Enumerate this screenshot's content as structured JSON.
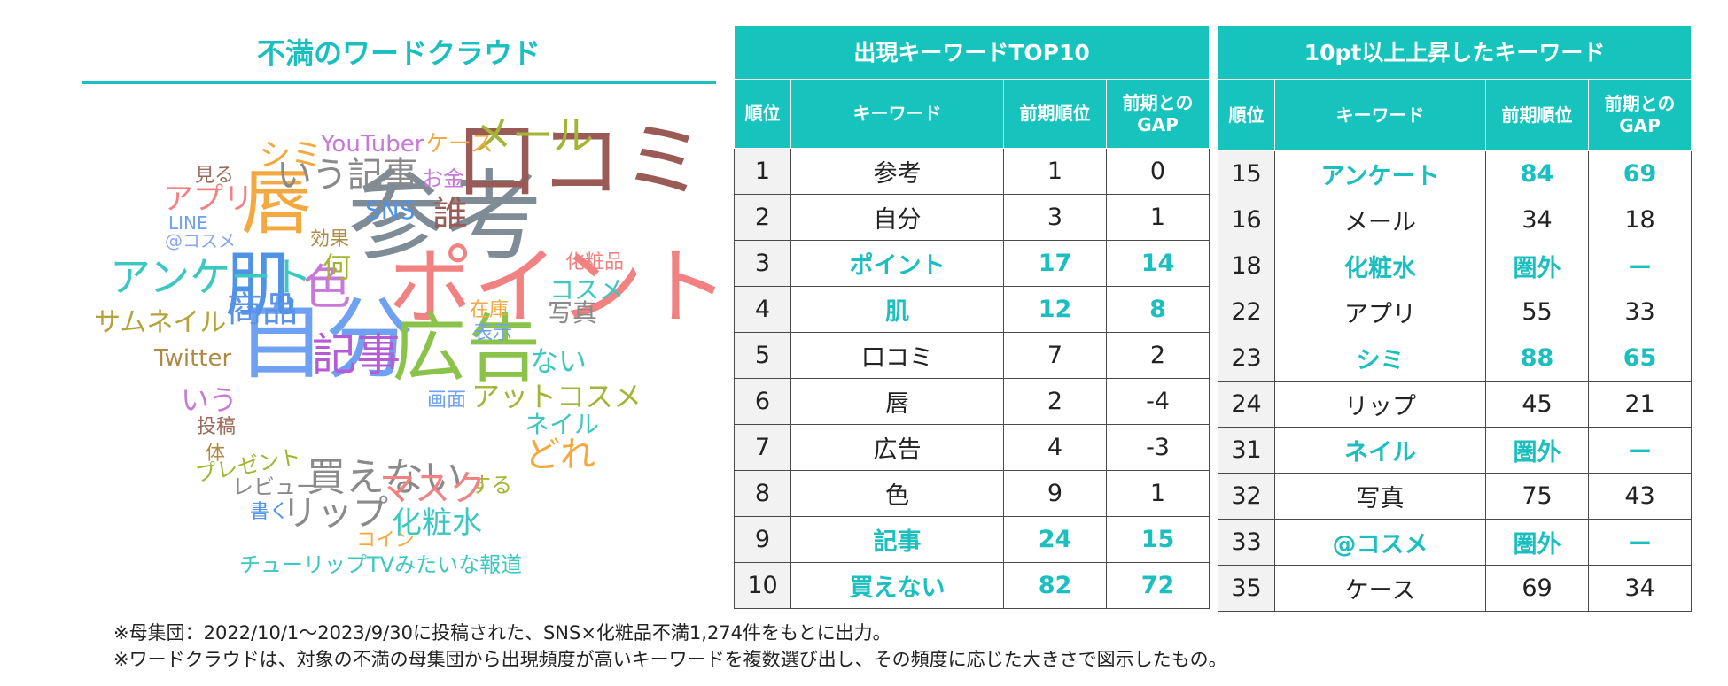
{
  "wordcloud": {
    "title": "不満のワードクラウド",
    "words": [
      {
        "text": "参考",
        "color": "#7f8c95"
      },
      {
        "text": "口コミ",
        "color": "#9a5b57"
      },
      {
        "text": "ポイント",
        "color": "#f28282"
      },
      {
        "text": "自分",
        "color": "#6fa1f2"
      },
      {
        "text": "肌",
        "color": "#4f92e6"
      },
      {
        "text": "広告",
        "color": "#8bc34a"
      },
      {
        "text": "唇",
        "color": "#f4a940"
      },
      {
        "text": "メール",
        "color": "#a3b533"
      },
      {
        "text": "アンケート",
        "color": "#3cc8c1"
      },
      {
        "text": "色",
        "color": "#c778d8"
      },
      {
        "text": "商品",
        "color": "#5a94e8"
      },
      {
        "text": "記事",
        "color": "#b65ad6"
      },
      {
        "text": "いう記事",
        "color": "#8a8a8a"
      },
      {
        "text": "シミ",
        "color": "#f4a940"
      },
      {
        "text": "YouTuber",
        "color": "#c778d8"
      },
      {
        "text": "ケース",
        "color": "#f4a940"
      },
      {
        "text": "お金",
        "color": "#c778d8"
      },
      {
        "text": "誰",
        "color": "#9a5b57"
      },
      {
        "text": "SNS",
        "color": "#4f92e6"
      },
      {
        "text": "見る",
        "color": "#9a6a5a"
      },
      {
        "text": "アプリ",
        "color": "#f28282"
      },
      {
        "text": "LINE",
        "color": "#6fa1f2"
      },
      {
        "text": "@コスメ",
        "color": "#8aa6f2"
      },
      {
        "text": "効果",
        "color": "#b08a45"
      },
      {
        "text": "何",
        "color": "#a3b533"
      },
      {
        "text": "化粧品",
        "color": "#f28282"
      },
      {
        "text": "コスメ",
        "color": "#3cc8c1"
      },
      {
        "text": "在庫",
        "color": "#f4a940"
      },
      {
        "text": "写真",
        "color": "#8a8a8a"
      },
      {
        "text": "表示",
        "color": "#6fa1f2"
      },
      {
        "text": "サムネイル",
        "color": "#b5a33a"
      },
      {
        "text": "Twitter",
        "color": "#b08a45"
      },
      {
        "text": "ない",
        "color": "#3cc8c1"
      },
      {
        "text": "いう",
        "color": "#c778d8"
      },
      {
        "text": "画面",
        "color": "#6fa1f2"
      },
      {
        "text": "アットコスメ",
        "color": "#a3b533"
      },
      {
        "text": "ネイル",
        "color": "#3cc8c1"
      },
      {
        "text": "投稿",
        "color": "#9a6a5a"
      },
      {
        "text": "どれ",
        "color": "#f4a940"
      },
      {
        "text": "体",
        "color": "#b08a45"
      },
      {
        "text": "プレゼント",
        "color": "#a3b533"
      },
      {
        "text": "する",
        "color": "#a3b533"
      },
      {
        "text": "買えない",
        "color": "#8a8a8a"
      },
      {
        "text": "マスク",
        "color": "#f28282"
      },
      {
        "text": "レビュー",
        "color": "#8a8a8a"
      },
      {
        "text": "書く",
        "color": "#4f92e6"
      },
      {
        "text": "リップ",
        "color": "#8a8a8a"
      },
      {
        "text": "化粧水",
        "color": "#3cc8c1"
      },
      {
        "text": "コイン",
        "color": "#f4a940"
      },
      {
        "text": "チューリップTVみたいな報道",
        "color": "#3cc8c1"
      }
    ]
  },
  "top10": {
    "title": "出現キーワードTOP10",
    "headers": [
      "順位",
      "キーワード",
      "前期順位",
      "前期との\nGAP"
    ],
    "rows": [
      {
        "rank": "1",
        "keyword": "参考",
        "prev": "1",
        "gap": "0",
        "highlight": false
      },
      {
        "rank": "2",
        "keyword": "自分",
        "prev": "3",
        "gap": "1",
        "highlight": false
      },
      {
        "rank": "3",
        "keyword": "ポイント",
        "prev": "17",
        "gap": "14",
        "highlight": true
      },
      {
        "rank": "4",
        "keyword": "肌",
        "prev": "12",
        "gap": "8",
        "highlight": true
      },
      {
        "rank": "5",
        "keyword": "口コミ",
        "prev": "7",
        "gap": "2",
        "highlight": false
      },
      {
        "rank": "6",
        "keyword": "唇",
        "prev": "2",
        "gap": "-4",
        "highlight": false
      },
      {
        "rank": "7",
        "keyword": "広告",
        "prev": "4",
        "gap": "-3",
        "highlight": false
      },
      {
        "rank": "8",
        "keyword": "色",
        "prev": "9",
        "gap": "1",
        "highlight": false
      },
      {
        "rank": "9",
        "keyword": "記事",
        "prev": "24",
        "gap": "15",
        "highlight": true
      },
      {
        "rank": "10",
        "keyword": "買えない",
        "prev": "82",
        "gap": "72",
        "highlight": true
      }
    ]
  },
  "rise": {
    "title": "10pt以上上昇したキーワード",
    "headers": [
      "順位",
      "キーワード",
      "前期順位",
      "前期との\nGAP"
    ],
    "rows": [
      {
        "rank": "15",
        "keyword": "アンケート",
        "prev": "84",
        "gap": "69",
        "highlight": true
      },
      {
        "rank": "16",
        "keyword": "メール",
        "prev": "34",
        "gap": "18",
        "highlight": false
      },
      {
        "rank": "18",
        "keyword": "化粧水",
        "prev": "圏外",
        "gap": "ー",
        "highlight": true
      },
      {
        "rank": "22",
        "keyword": "アプリ",
        "prev": "55",
        "gap": "33",
        "highlight": false
      },
      {
        "rank": "23",
        "keyword": "シミ",
        "prev": "88",
        "gap": "65",
        "highlight": true
      },
      {
        "rank": "24",
        "keyword": "リップ",
        "prev": "45",
        "gap": "21",
        "highlight": false
      },
      {
        "rank": "31",
        "keyword": "ネイル",
        "prev": "圏外",
        "gap": "ー",
        "highlight": true
      },
      {
        "rank": "32",
        "keyword": "写真",
        "prev": "75",
        "gap": "43",
        "highlight": false
      },
      {
        "rank": "33",
        "keyword": "@コスメ",
        "prev": "圏外",
        "gap": "ー",
        "highlight": true
      },
      {
        "rank": "35",
        "keyword": "ケース",
        "prev": "69",
        "gap": "34",
        "highlight": false
      }
    ]
  },
  "notes": [
    "※母集団：2022/10/1～2023/9/30に投稿された、SNS×化粧品不満1,274件をもとに出力。",
    "※ワードクラウドは、対象の不満の母集団から出現頻度が高いキーワードを複数選び出し、その頻度に応じた大きさで図示したもの。"
  ]
}
